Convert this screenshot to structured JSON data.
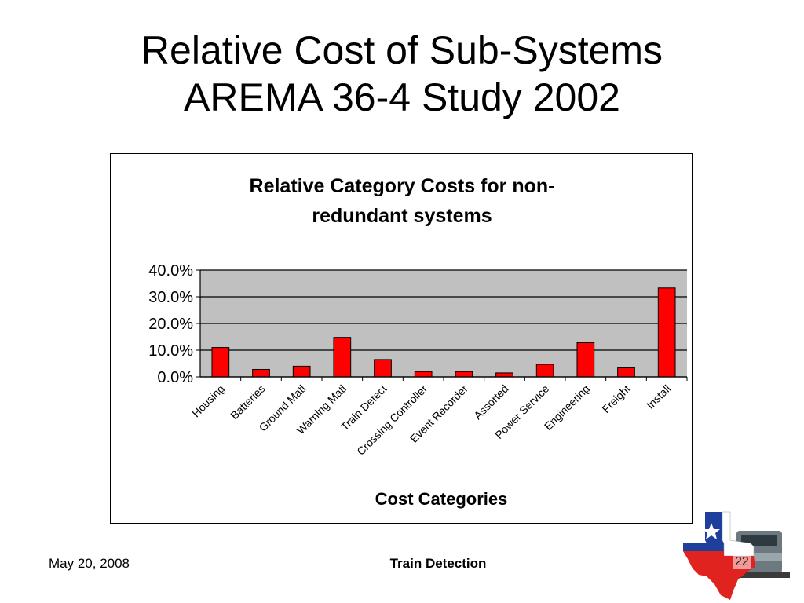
{
  "slide": {
    "title_line1": "Relative Cost of Sub-Systems",
    "title_line2": "AREMA 36-4 Study 2002"
  },
  "footer": {
    "date": "May 20, 2008",
    "center": "Train Detection",
    "page": "22"
  },
  "chart_data": {
    "type": "bar",
    "title_lines": [
      "Relative Category Costs for non-",
      "redundant systems"
    ],
    "xlabel": "Cost Categories",
    "ylabel": "",
    "categories": [
      "Housing",
      "Batteries",
      "Ground Matl",
      "Warning Matl",
      "Train Detect",
      "Crossing Controller",
      "Event Recorder",
      "Assorted",
      "Power Service",
      "Engineering",
      "Freight",
      "Install"
    ],
    "values": [
      11.0,
      2.8,
      4.0,
      14.8,
      6.5,
      2.0,
      2.0,
      1.5,
      4.7,
      12.8,
      3.4,
      33.3
    ],
    "ylim": [
      0,
      40
    ],
    "yticks": [
      0,
      10,
      20,
      30,
      40
    ],
    "ytick_labels": [
      "0.0%",
      "10.0%",
      "20.0%",
      "30.0%",
      "40.0%"
    ],
    "grid": true,
    "legend": "none",
    "colors": {
      "bar": "#ff0000",
      "plot_background": "#c0c0c0",
      "bar_outline": "#000000"
    }
  }
}
